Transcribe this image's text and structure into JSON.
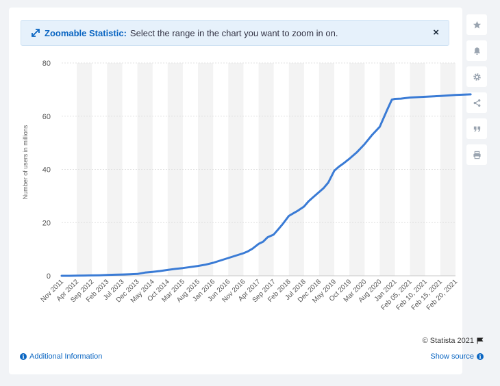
{
  "banner": {
    "title": "Zoomable Statistic:",
    "text": "Select the range in the chart you want to zoom in on.",
    "close": "×"
  },
  "sidebar": {
    "icons": [
      "star-icon",
      "bell-icon",
      "gear-icon",
      "share-icon",
      "quote-icon",
      "print-icon"
    ]
  },
  "footer": {
    "copyright": "© Statista 2021",
    "additional_info": "Additional Information",
    "show_source": "Show source"
  },
  "colors": {
    "line": "#3a7bd5",
    "accent": "#0b66c2",
    "band": "#f3f3f3"
  },
  "chart_data": {
    "type": "line",
    "title": "",
    "xlabel": "",
    "ylabel": "Number of users in millions",
    "ylim": [
      0,
      80
    ],
    "yticks": [
      0,
      20,
      40,
      60,
      80
    ],
    "grid": true,
    "categories": [
      "Nov 2011",
      "Apr 2012",
      "Sep 2012",
      "Feb 2013",
      "Jul 2013",
      "Dec 2013",
      "May 2014",
      "Oct 2014",
      "Mar 2015",
      "Aug 2015",
      "Jan 2016",
      "Jun 2016",
      "Nov 2016",
      "Apr 2017",
      "Sep 2017",
      "Feb 2018",
      "Jul 2018",
      "Dec 2018",
      "May 2019",
      "Oct 2019",
      "Mar 2020",
      "Aug 2020",
      "Jan 2021",
      "Feb 05, 2021",
      "Feb 10, 2021",
      "Feb 15, 2021",
      "Feb 20, 2021"
    ],
    "series": [
      {
        "name": "",
        "x": [
          0,
          0.5,
          1,
          1.5,
          2,
          2.5,
          3,
          3.5,
          4,
          4.5,
          5,
          5.5,
          6,
          6.5,
          7,
          7.5,
          8,
          8.5,
          9,
          9.5,
          10,
          10.5,
          11,
          11.5,
          12,
          12.3,
          12.6,
          13,
          13.3,
          13.6,
          14,
          14.3,
          14.6,
          15,
          15.3,
          15.6,
          16,
          16.3,
          16.6,
          17,
          17.3,
          17.6,
          18,
          18.3,
          18.6,
          19,
          19.5,
          20,
          20.5,
          21,
          21.5,
          21.8,
          22,
          22.4,
          23,
          24,
          25,
          26,
          27
        ],
        "values": [
          0,
          0,
          0.05,
          0.1,
          0.15,
          0.2,
          0.3,
          0.4,
          0.5,
          0.6,
          0.7,
          1.2,
          1.5,
          1.8,
          2.2,
          2.6,
          2.9,
          3.3,
          3.7,
          4.2,
          4.9,
          5.8,
          6.7,
          7.6,
          8.5,
          9.2,
          10.2,
          12,
          12.8,
          14.5,
          15.5,
          17.5,
          19.5,
          22.5,
          23.5,
          24.5,
          26,
          28,
          29.5,
          31.5,
          33,
          35,
          39.5,
          41,
          42.2,
          44,
          46.5,
          49.5,
          53,
          56,
          62.5,
          66.2,
          66.5,
          66.6,
          67,
          67.3,
          67.6,
          68,
          68.2
        ]
      }
    ]
  }
}
